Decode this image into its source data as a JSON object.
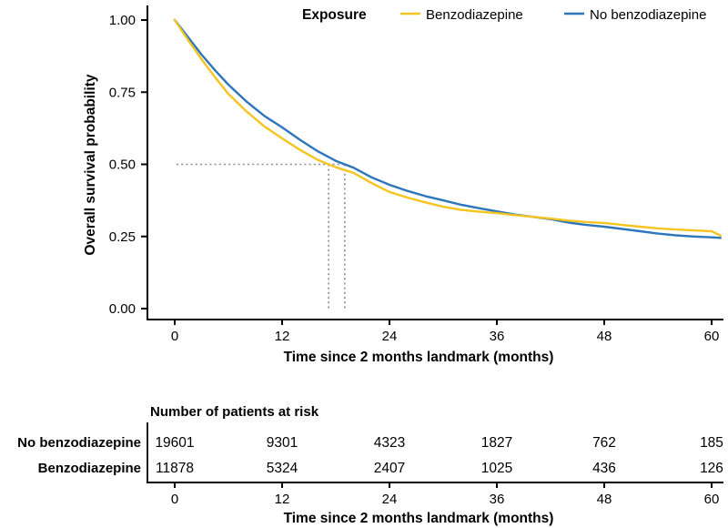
{
  "legend": {
    "title": "Exposure",
    "entries": [
      {
        "label": "Benzodiazepine",
        "color": "#F4C420"
      },
      {
        "label": "No benzodiazepine",
        "color": "#2D76BC"
      }
    ]
  },
  "plot": {
    "ylabel": "Overall survival probability",
    "xlabel": "Time since 2 months landmark (months)",
    "yticks": [
      "1.00",
      "0.75",
      "0.50",
      "0.25",
      "0.00"
    ],
    "xticks": [
      "0",
      "12",
      "24",
      "36",
      "48",
      "60"
    ]
  },
  "chart_data": {
    "type": "line",
    "subtype": "kaplan-meier-survival",
    "title": "",
    "xlabel": "Time since 2 months landmark (months)",
    "ylabel": "Overall survival probability",
    "xlim": [
      0,
      61.5
    ],
    "ylim": [
      0,
      1
    ],
    "grid": false,
    "legend_position": "top",
    "x": [
      0,
      1.5,
      3,
      4.5,
      6,
      8,
      10,
      12,
      14,
      16,
      18,
      20,
      22,
      24,
      26,
      28,
      30,
      32,
      34,
      36,
      38,
      40,
      42,
      44,
      46,
      48,
      50,
      52,
      54,
      56,
      58,
      60,
      61
    ],
    "series": [
      {
        "name": "No benzodiazepine",
        "color": "#2D76BC",
        "values": [
          1.0,
          0.94,
          0.88,
          0.826,
          0.776,
          0.718,
          0.668,
          0.628,
          0.585,
          0.545,
          0.512,
          0.488,
          0.455,
          0.429,
          0.408,
          0.39,
          0.375,
          0.36,
          0.348,
          0.337,
          0.326,
          0.318,
          0.31,
          0.298,
          0.29,
          0.284,
          0.276,
          0.268,
          0.26,
          0.254,
          0.25,
          0.247,
          0.245
        ]
      },
      {
        "name": "Benzodiazepine",
        "color": "#F4C420",
        "values": [
          1.0,
          0.93,
          0.864,
          0.802,
          0.744,
          0.684,
          0.632,
          0.59,
          0.55,
          0.515,
          0.49,
          0.47,
          0.435,
          0.404,
          0.385,
          0.368,
          0.353,
          0.342,
          0.336,
          0.331,
          0.324,
          0.318,
          0.312,
          0.305,
          0.3,
          0.297,
          0.29,
          0.284,
          0.278,
          0.274,
          0.271,
          0.268,
          0.253
        ]
      }
    ],
    "median_guides": {
      "survival_probability": 0.5,
      "benzodiazepine_months": 17.2,
      "no_benzodiazepine_months": 19.0
    }
  },
  "risk_table": {
    "title": "Number of patients at risk",
    "xlabel": "Time since 2 months landmark (months)",
    "timepoints": [
      0,
      12,
      24,
      36,
      48,
      60
    ],
    "rows": [
      {
        "label": "No benzodiazepine",
        "color": "#2D76BC",
        "counts": [
          19601,
          9301,
          4323,
          1827,
          762,
          185
        ]
      },
      {
        "label": "Benzodiazepine",
        "color": "#F4C420",
        "counts": [
          11878,
          5324,
          2407,
          1025,
          436,
          126
        ]
      }
    ]
  },
  "colors": {
    "blue": "#2D76BC",
    "yellow": "#F4C420",
    "guide_gray": "#8C8C8C",
    "axis_black": "#000000"
  }
}
